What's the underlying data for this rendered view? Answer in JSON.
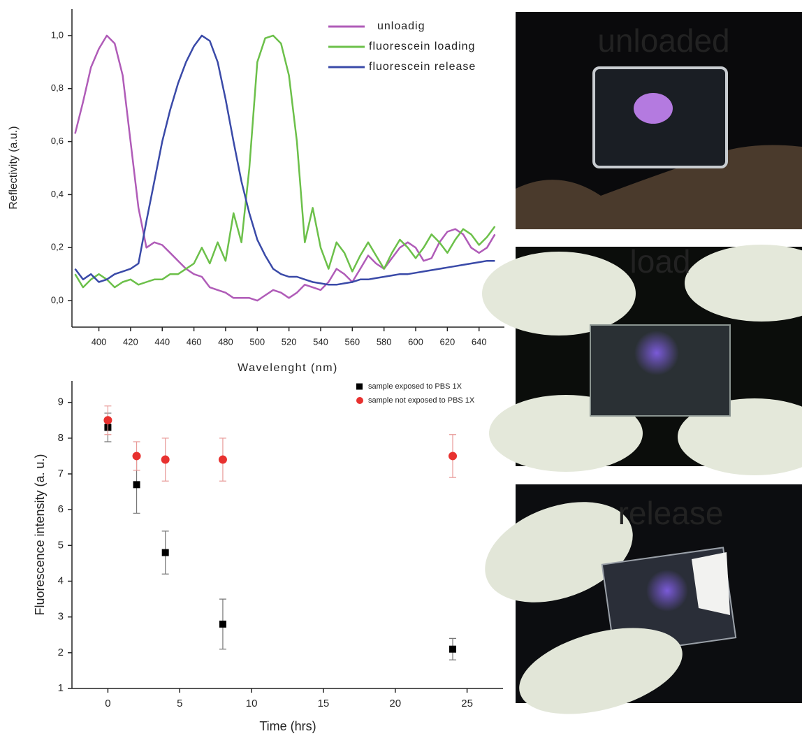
{
  "chart_data": [
    {
      "type": "line",
      "x_label": "Wavelenght (nm)",
      "y_label": "Reflectivity (a.u.)",
      "x": [
        385,
        390,
        395,
        400,
        405,
        410,
        415,
        420,
        425,
        430,
        435,
        440,
        445,
        450,
        455,
        460,
        465,
        470,
        475,
        480,
        485,
        490,
        495,
        500,
        505,
        510,
        515,
        520,
        525,
        530,
        535,
        540,
        545,
        550,
        555,
        560,
        565,
        570,
        575,
        580,
        585,
        590,
        595,
        600,
        605,
        610,
        615,
        620,
        625,
        630,
        635,
        640,
        645,
        650
      ],
      "series": [
        {
          "name": "unloadig",
          "color": "#b05cb8",
          "values": [
            0.63,
            0.75,
            0.88,
            0.95,
            1.0,
            0.97,
            0.85,
            0.6,
            0.35,
            0.2,
            0.22,
            0.21,
            0.18,
            0.15,
            0.12,
            0.1,
            0.09,
            0.05,
            0.04,
            0.03,
            0.01,
            0.01,
            0.01,
            0.0,
            0.02,
            0.04,
            0.03,
            0.01,
            0.03,
            0.06,
            0.05,
            0.04,
            0.07,
            0.12,
            0.1,
            0.07,
            0.12,
            0.17,
            0.14,
            0.12,
            0.16,
            0.2,
            0.22,
            0.2,
            0.15,
            0.16,
            0.22,
            0.26,
            0.27,
            0.25,
            0.2,
            0.18,
            0.2,
            0.25
          ]
        },
        {
          "name": "fluorescein loading",
          "color": "#6cc04a",
          "values": [
            0.1,
            0.05,
            0.08,
            0.1,
            0.08,
            0.05,
            0.07,
            0.08,
            0.06,
            0.07,
            0.08,
            0.08,
            0.1,
            0.1,
            0.12,
            0.14,
            0.2,
            0.14,
            0.22,
            0.15,
            0.33,
            0.22,
            0.5,
            0.9,
            0.99,
            1.0,
            0.97,
            0.85,
            0.6,
            0.22,
            0.35,
            0.2,
            0.12,
            0.22,
            0.18,
            0.11,
            0.17,
            0.22,
            0.17,
            0.12,
            0.18,
            0.23,
            0.2,
            0.16,
            0.2,
            0.25,
            0.22,
            0.18,
            0.23,
            0.27,
            0.25,
            0.21,
            0.24,
            0.28
          ]
        },
        {
          "name": "fluorescein release",
          "color": "#3a4aa8",
          "values": [
            0.12,
            0.08,
            0.1,
            0.07,
            0.08,
            0.1,
            0.11,
            0.12,
            0.14,
            0.3,
            0.45,
            0.6,
            0.72,
            0.82,
            0.9,
            0.96,
            1.0,
            0.98,
            0.9,
            0.76,
            0.6,
            0.45,
            0.33,
            0.23,
            0.17,
            0.12,
            0.1,
            0.09,
            0.09,
            0.08,
            0.07,
            0.065,
            0.06,
            0.06,
            0.065,
            0.07,
            0.08,
            0.08,
            0.085,
            0.09,
            0.095,
            0.1,
            0.1,
            0.105,
            0.11,
            0.115,
            0.12,
            0.125,
            0.13,
            0.135,
            0.14,
            0.145,
            0.15,
            0.15
          ]
        }
      ],
      "xlim": [
        383,
        656
      ],
      "ylim": [
        -0.1,
        1.1
      ],
      "xticks": [
        400,
        420,
        440,
        460,
        480,
        500,
        520,
        540,
        560,
        580,
        600,
        620,
        640
      ],
      "yticks": [
        {
          "value": 0,
          "label": "0,0"
        },
        {
          "value": 0.2,
          "label": "0,2"
        },
        {
          "value": 0.4,
          "label": "0,4"
        },
        {
          "value": 0.6,
          "label": "0,6"
        },
        {
          "value": 0.8,
          "label": "0,8"
        },
        {
          "value": 1,
          "label": "1,0"
        }
      ],
      "legend": "upper right"
    },
    {
      "type": "scatter",
      "x_label": "Time (hrs)",
      "y_label": "Fluorescence intensity (a. u.)",
      "x": [
        0,
        2,
        4,
        8,
        24
      ],
      "series": [
        {
          "name": "sample exposed to PBS 1X",
          "color": "#000000",
          "marker": "square",
          "values": [
            8.3,
            6.7,
            4.8,
            2.8,
            2.1
          ],
          "errors": [
            0.4,
            0.8,
            0.6,
            0.7,
            0.3
          ]
        },
        {
          "name": "sample not exposed to PBS 1X",
          "color": "#e8312f",
          "marker": "circle",
          "values": [
            8.5,
            7.5,
            7.4,
            7.4,
            7.5
          ],
          "errors": [
            0.4,
            0.4,
            0.6,
            0.6,
            0.6
          ]
        }
      ],
      "xlim": [
        -2.5,
        27.5
      ],
      "ylim": [
        1,
        9.6
      ],
      "xticks": [
        0,
        5,
        10,
        15,
        20,
        25
      ],
      "yticks": [
        1,
        2,
        3,
        4,
        5,
        6,
        7,
        8,
        9
      ],
      "legend": "upper right"
    }
  ],
  "photos": [
    {
      "label": "unloaded",
      "color": "#9a52c8"
    },
    {
      "label": "load",
      "color": "#7ccf5a"
    },
    {
      "label": "release",
      "color": "#5546b8"
    }
  ]
}
